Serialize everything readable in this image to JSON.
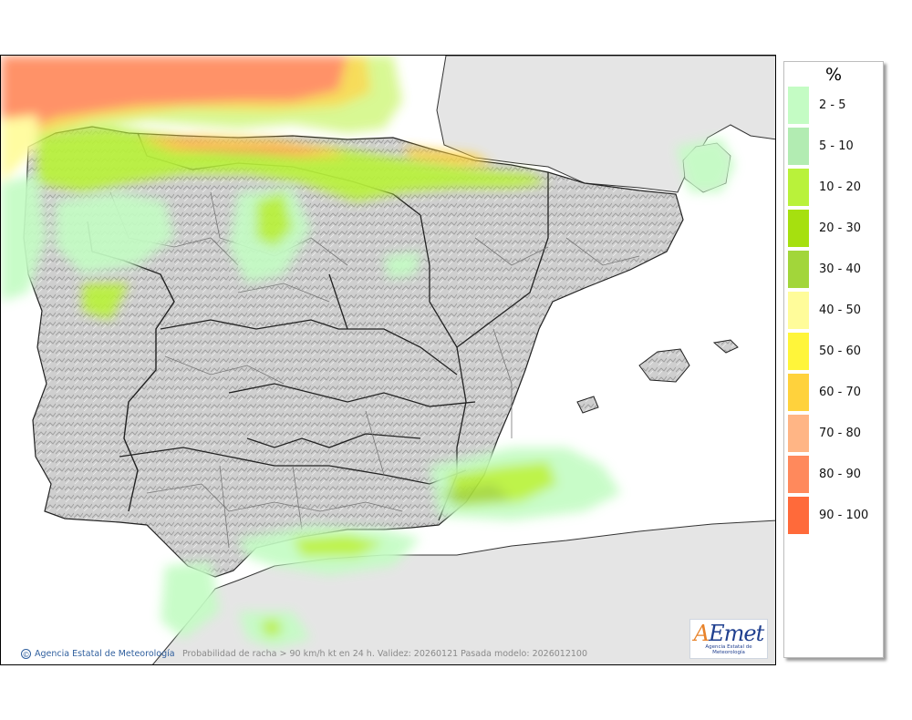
{
  "map": {
    "caption": "Probabilidad de racha > 90 km/h kt en 24 h. Validez: 20260121 Pasada modelo: 2026012100",
    "credit": "Agencia Estatal de Meteorología",
    "credit_icon": "copyright-icon",
    "logo": {
      "main": "AEmet",
      "sub": "Agencia Estatal de Meteorología"
    }
  },
  "legend": {
    "title": "%",
    "items": [
      {
        "label": "2 - 5",
        "color": "#c4fcc4"
      },
      {
        "label": "5 - 10",
        "color": "#b2ecb2"
      },
      {
        "label": "10 - 20",
        "color": "#b9f23a"
      },
      {
        "label": "20 - 30",
        "color": "#a6e00f"
      },
      {
        "label": "30 - 40",
        "color": "#a2d63a"
      },
      {
        "label": "40 - 50",
        "color": "#fffc9a"
      },
      {
        "label": "50 - 60",
        "color": "#fff53a"
      },
      {
        "label": "60 - 70",
        "color": "#ffd23c"
      },
      {
        "label": "70 - 80",
        "color": "#ffb585"
      },
      {
        "label": "80 - 90",
        "color": "#ff895c"
      },
      {
        "label": "90 - 100",
        "color": "#ff6a3a"
      }
    ]
  }
}
